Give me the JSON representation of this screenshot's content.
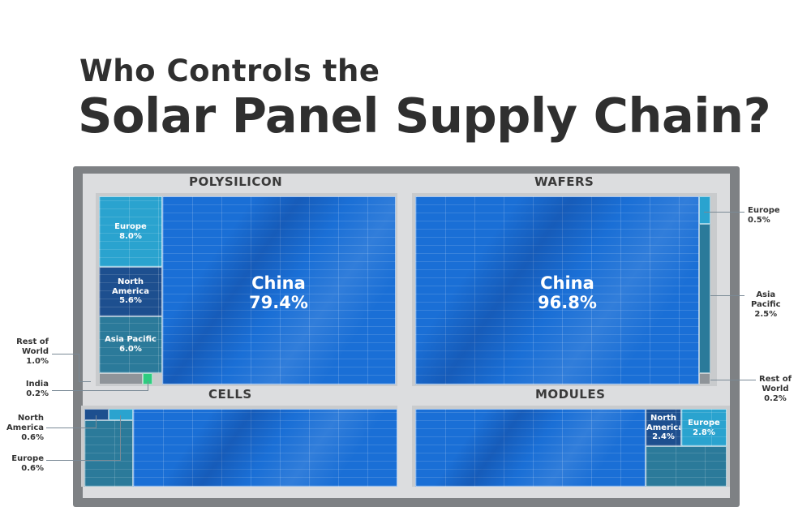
{
  "title": {
    "line1": "Who Controls the",
    "line2": "Solar Panel Supply Chain?"
  },
  "colors": {
    "china": "#1a6fd6",
    "europe": "#2aa3cf",
    "north_america": "#1d4f8f",
    "asia_pacific": "#2b7a9a",
    "india": "#2ecc80",
    "rest_of_world": "#8f9499",
    "frame": "#7e8184"
  },
  "chart_data": [
    {
      "type": "treemap",
      "title": "POLYSILICON",
      "segments": [
        {
          "name": "China",
          "value": 79.4,
          "label": "China",
          "pct": "79.4%"
        },
        {
          "name": "Asia Pacific",
          "value": 6.0,
          "label": "Asia Pacific",
          "pct": "6.0%"
        },
        {
          "name": "Europe",
          "value": 8.0,
          "label": "Europe",
          "pct": "8.0%"
        },
        {
          "name": "North America",
          "value": 5.6,
          "label1": "North",
          "label2": "America",
          "pct": "5.6%"
        },
        {
          "name": "Rest of World",
          "value": 1.0,
          "label1": "Rest of",
          "label2": "World",
          "pct": "1.0%"
        },
        {
          "name": "India",
          "value": 0.2,
          "label": "India",
          "pct": "0.2%"
        }
      ]
    },
    {
      "type": "treemap",
      "title": "WAFERS",
      "segments": [
        {
          "name": "China",
          "value": 96.8,
          "label": "China",
          "pct": "96.8%"
        },
        {
          "name": "Europe",
          "value": 0.5,
          "label": "Europe",
          "pct": "0.5%"
        },
        {
          "name": "Asia Pacific",
          "value": 2.5,
          "label1": "Asia",
          "label2": "Pacific",
          "pct": "2.5%"
        },
        {
          "name": "Rest of World",
          "value": 0.2,
          "label1": "Rest of",
          "label2": "World",
          "pct": "0.2%"
        }
      ]
    },
    {
      "type": "treemap",
      "title": "CELLS",
      "segments": [
        {
          "name": "North America",
          "value": 0.6,
          "label1": "North",
          "label2": "America",
          "pct": "0.6%"
        },
        {
          "name": "Europe",
          "value": 0.6,
          "label": "Europe",
          "pct": "0.6%"
        }
      ]
    },
    {
      "type": "treemap",
      "title": "MODULES",
      "segments": [
        {
          "name": "North America",
          "value": 2.4,
          "label1": "North",
          "label2": "America",
          "pct": "2.4%"
        },
        {
          "name": "Europe",
          "value": 2.8,
          "label": "Europe",
          "pct": "2.8%"
        }
      ]
    }
  ]
}
